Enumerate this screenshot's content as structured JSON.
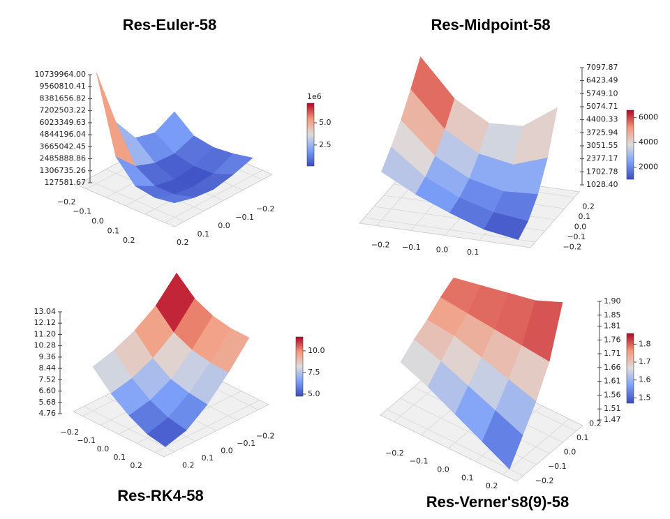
{
  "chart_data": [
    {
      "type": "surface",
      "title": "Res-Euler-58",
      "x": [
        -0.2,
        -0.1,
        0,
        0.1,
        0.2
      ],
      "y": [
        -0.2,
        -0.1,
        0,
        0.1,
        0.2
      ],
      "z": [
        [
          3000000,
          2000000,
          2500000,
          5000000,
          10739964
        ],
        [
          1500000,
          800000,
          900000,
          1600000,
          3500000
        ],
        [
          1200000,
          400000,
          127581.67,
          500000,
          1500000
        ],
        [
          1400000,
          500000,
          300000,
          500000,
          1200000
        ],
        [
          1800000,
          1200000,
          800000,
          1000000,
          1500000
        ]
      ],
      "xlim": [
        -0.25,
        0.25
      ],
      "ylim": [
        -0.25,
        0.25
      ],
      "xticks": [
        {
          "value": -0.2,
          "label": "−0.2"
        },
        {
          "value": -0.1,
          "label": "−0.1"
        },
        {
          "value": 0,
          "label": "0.0"
        },
        0.1,
        0.2
      ],
      "yticks": [
        {
          "value": -0.2,
          "label": "−0.2"
        },
        {
          "value": -0.1,
          "label": "−0.1"
        },
        {
          "value": 0,
          "label": "0.0"
        },
        0.1,
        0.2
      ],
      "zlim": [
        127581.67,
        10739964
      ],
      "zticks": [
        127581.67,
        1306735.26,
        2485888.86,
        3665042.45,
        4844196.04,
        6023349.63,
        7202503.22,
        8381656.82,
        9560810.41,
        {
          "value": 10739964,
          "label": "10739964.00"
        }
      ],
      "colormap": "coolwarm",
      "clim": [
        0.13,
        7.2
      ],
      "colorbar_offset": "1e6",
      "colorbar_ticks": [
        2.5,
        {
          "value": 5,
          "label": "5.0"
        }
      ]
    },
    {
      "type": "surface",
      "title": "Res-Midpoint-58",
      "x": [
        -0.2,
        -0.1,
        0,
        0.1,
        0.2
      ],
      "y": [
        -0.2,
        -0.1,
        0,
        0.1,
        0.2
      ],
      "z": [
        [
          3500,
          4200,
          5000,
          6000,
          7097.87
        ],
        [
          2600,
          2900,
          3400,
          4200,
          5200
        ],
        [
          1900,
          2100,
          2500,
          3200,
          4200
        ],
        [
          1300,
          1600,
          2100,
          2900,
          4300
        ],
        [
          1028.4,
          1400,
          2200,
          3500,
          5500
        ]
      ],
      "xlim": [
        -0.25,
        0.25
      ],
      "ylim": [
        -0.25,
        0.25
      ],
      "xticks": [
        {
          "value": -0.2,
          "label": "−0.2"
        },
        {
          "value": -0.1,
          "label": "−0.1"
        },
        {
          "value": 0,
          "label": "0.0"
        },
        0.1
      ],
      "yticks": [
        {
          "value": -0.2,
          "label": "−0.2"
        },
        {
          "value": -0.1,
          "label": "−0.1"
        },
        {
          "value": 0,
          "label": "0.0"
        },
        0.1,
        0.2
      ],
      "zlim": [
        1028.4,
        7097.87
      ],
      "zticks": [
        {
          "value": 1028.4,
          "label": "1028.40"
        },
        1702.78,
        2377.17,
        3051.55,
        3725.94,
        4400.33,
        5074.71,
        {
          "value": 5749.1,
          "label": "5749.10"
        },
        6423.49,
        7097.87
      ],
      "colormap": "coolwarm",
      "clim": [
        1028.4,
        6600
      ],
      "colorbar_ticks": [
        2000,
        4000,
        6000
      ]
    },
    {
      "type": "surface",
      "title": "Res-RK4-58",
      "x": [
        -0.2,
        -0.1,
        0,
        0.1,
        0.2
      ],
      "y": [
        -0.2,
        -0.1,
        0,
        0.1,
        0.2
      ],
      "z": [
        [
          12.9,
          11.0,
          9.8,
          9.0,
          8.5
        ],
        [
          11.5,
          9.5,
          8.2,
          7.4,
          7.0
        ],
        [
          10.8,
          8.8,
          7.2,
          6.3,
          5.9
        ],
        [
          10.5,
          8.5,
          6.8,
          5.6,
          5.1
        ],
        [
          10.5,
          8.4,
          6.6,
          5.3,
          4.8
        ]
      ],
      "xlim": [
        -0.25,
        0.25
      ],
      "ylim": [
        -0.25,
        0.25
      ],
      "xticks": [
        {
          "value": -0.2,
          "label": "−0.2"
        },
        {
          "value": -0.1,
          "label": "−0.1"
        },
        {
          "value": 0,
          "label": "0.0"
        },
        0.1,
        0.2
      ],
      "yticks": [
        {
          "value": -0.2,
          "label": "−0.2"
        },
        {
          "value": -0.1,
          "label": "−0.1"
        },
        {
          "value": 0,
          "label": "0.0"
        },
        0.1,
        0.2
      ],
      "zlim": [
        4.76,
        13.04
      ],
      "zticks": [
        4.76,
        5.68,
        {
          "value": 6.6,
          "label": "6.60"
        },
        7.52,
        8.44,
        9.36,
        10.28,
        {
          "value": 11.2,
          "label": "11.20"
        },
        12.12,
        13.04
      ],
      "colormap": "coolwarm",
      "clim": [
        4.76,
        11.6
      ],
      "colorbar_ticks": [
        {
          "value": 5,
          "label": "5.0"
        },
        7.5,
        {
          "value": 10,
          "label": "10.0"
        }
      ]
    },
    {
      "type": "surface",
      "title": "Res-Verner's8(9)-58",
      "x": [
        -0.2,
        -0.1,
        0,
        0.1,
        0.2
      ],
      "y": [
        -0.2,
        -0.1,
        0,
        0.1,
        0.2
      ],
      "z": [
        [
          1.66,
          1.7,
          1.73,
          1.77,
          1.8
        ],
        [
          1.62,
          1.67,
          1.72,
          1.76,
          1.82
        ],
        [
          1.57,
          1.63,
          1.69,
          1.75,
          1.84
        ],
        [
          1.52,
          1.59,
          1.66,
          1.74,
          1.86
        ],
        [
          1.47,
          1.55,
          1.63,
          1.73,
          1.9
        ]
      ],
      "xlim": [
        -0.25,
        0.25
      ],
      "ylim": [
        -0.25,
        0.25
      ],
      "xticks": [
        {
          "value": -0.2,
          "label": "−0.2"
        },
        {
          "value": -0.1,
          "label": "−0.1"
        },
        {
          "value": 0,
          "label": "0.0"
        },
        0.1,
        0.2
      ],
      "yticks": [
        {
          "value": -0.2,
          "label": "−0.2"
        },
        {
          "value": -0.1,
          "label": "−0.1"
        },
        {
          "value": 0,
          "label": "0.0"
        },
        0.1,
        0.2
      ],
      "zlim": [
        1.47,
        1.9
      ],
      "zticks": [
        1.47,
        1.51,
        1.56,
        1.61,
        1.66,
        1.71,
        1.76,
        1.81,
        1.85,
        {
          "value": 1.9,
          "label": "1.90"
        }
      ],
      "colormap": "coolwarm",
      "clim": [
        1.47,
        1.86
      ],
      "colorbar_ticks": [
        1.5,
        1.6,
        1.7,
        1.8
      ]
    }
  ]
}
